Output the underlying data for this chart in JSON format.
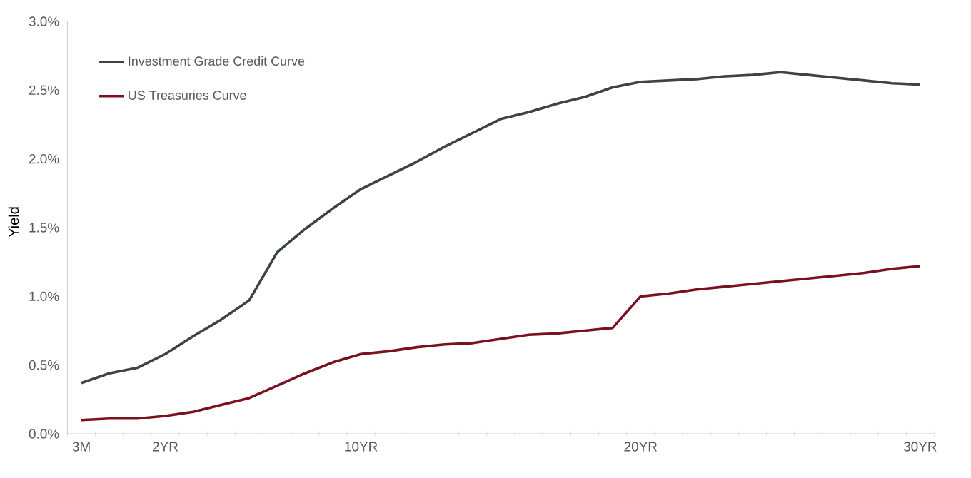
{
  "chart_data": {
    "type": "line",
    "ylabel": "Yield",
    "categories": [
      "3M",
      null,
      null,
      "2YR",
      null,
      null,
      null,
      null,
      null,
      null,
      "10YR",
      null,
      null,
      null,
      null,
      null,
      null,
      null,
      null,
      null,
      "20YR",
      null,
      null,
      null,
      null,
      null,
      null,
      null,
      null,
      null,
      "30YR"
    ],
    "series": [
      {
        "name": "Investment Grade Credit Curve",
        "color": "#3b4249",
        "values": [
          0.37,
          0.44,
          0.48,
          0.58,
          0.71,
          0.83,
          0.97,
          1.32,
          1.49,
          1.64,
          1.78,
          1.88,
          1.98,
          2.09,
          2.19,
          2.29,
          2.34,
          2.4,
          2.45,
          2.52,
          2.56,
          2.57,
          2.58,
          2.6,
          2.61,
          2.63,
          2.61,
          2.59,
          2.57,
          2.55,
          2.54
        ]
      },
      {
        "name": "US Treasuries Curve",
        "color": "#7b1020",
        "values": [
          0.1,
          0.11,
          0.11,
          0.13,
          0.16,
          0.21,
          0.26,
          0.35,
          0.44,
          0.52,
          0.58,
          0.6,
          0.63,
          0.65,
          0.66,
          0.69,
          0.72,
          0.73,
          0.75,
          0.77,
          1.0,
          1.02,
          1.05,
          1.07,
          1.09,
          1.11,
          1.13,
          1.15,
          1.17,
          1.2,
          1.22
        ]
      }
    ],
    "ylim": [
      0,
      3
    ],
    "yticks": [
      {
        "value": 0,
        "label": "0.0%"
      },
      {
        "value": 0.5,
        "label": "0.5%"
      },
      {
        "value": 1,
        "label": "1.0%"
      },
      {
        "value": 1.5,
        "label": "1.5%"
      },
      {
        "value": 2,
        "label": "2.0%"
      },
      {
        "value": 2.5,
        "label": "2.5%"
      },
      {
        "value": 3,
        "label": "3.0%"
      }
    ],
    "grid": false,
    "legend": "top left",
    "line_style": "solid"
  }
}
